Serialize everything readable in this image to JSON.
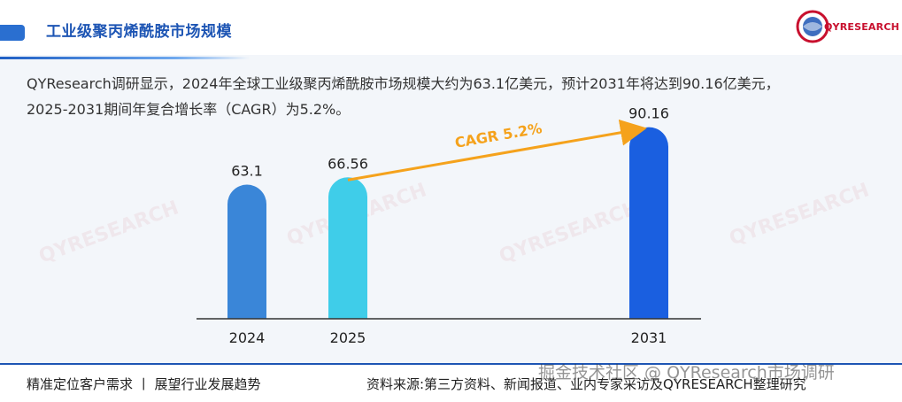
{
  "header": {
    "title": "工业级聚丙烯酰胺市场规模",
    "logo_text": "QYRESEARCH"
  },
  "intro": {
    "line1": "QYResearch调研显示，2024年全球工业级聚丙烯酰胺市场规模大约为63.1亿美元，预计2031年将达到90.16亿美元，",
    "line2": "2025-2031期间年复合增长率（CAGR）为5.2%。"
  },
  "colors": {
    "bar_2024": "#3a86d8",
    "bar_2025": "#3fcde9",
    "bar_2031": "#1a5fe0",
    "cagr_arrow": "#f5a21c",
    "axis": "#333333"
  },
  "chart_data": {
    "type": "bar",
    "categories": [
      "2024",
      "2025",
      "2031"
    ],
    "values": [
      63.1,
      66.56,
      90.16
    ],
    "data_labels": [
      "63.1",
      "66.56",
      "90.16"
    ],
    "annotation": "CAGR 5.2%",
    "ylim": [
      0,
      100
    ],
    "grid": false,
    "legend": "none"
  },
  "footer": {
    "left": "精准定位客户需求 丨 展望行业发展趋势",
    "right": "资料来源:第三方资料、新闻报道、业内专家采访及QYRESEARCH整理研究"
  },
  "watermark_credit": "掘金技术社区 @ QYResearch市场调研"
}
